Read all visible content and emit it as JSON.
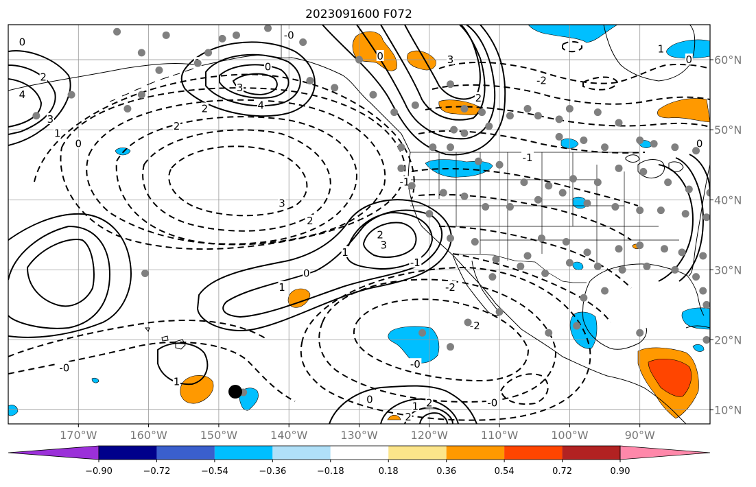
{
  "chart_data": {
    "type": "heatmap",
    "title": "2023091600 F072",
    "xlabel": "",
    "ylabel": "",
    "x_ticks": [
      "170°W",
      "160°W",
      "150°W",
      "140°W",
      "130°W",
      "120°W",
      "110°W",
      "100°W",
      "90°W"
    ],
    "x_tick_values": [
      -170,
      -160,
      -150,
      -140,
      -130,
      -120,
      -110,
      -100,
      -90
    ],
    "y_ticks": [
      "60°N",
      "50°N",
      "40°N",
      "30°N",
      "20°N",
      "10°N"
    ],
    "y_tick_values": [
      60,
      50,
      40,
      30,
      20,
      10
    ],
    "lon_range": [
      -180,
      -80
    ],
    "lat_range": [
      8,
      65
    ],
    "grid": true,
    "colorbar": {
      "tick_labels": [
        "−0.90",
        "−0.72",
        "−0.54",
        "−0.36",
        "−0.18",
        "0.18",
        "0.36",
        "0.54",
        "0.72",
        "0.90"
      ],
      "bounds": [
        -0.9,
        -0.72,
        -0.54,
        -0.36,
        -0.18,
        0.18,
        0.36,
        0.54,
        0.72,
        0.9
      ],
      "colors": [
        "#9b30d9",
        "#00008b",
        "#3a5fcd",
        "#00bfff",
        "#b0e0f8",
        "#ffffff",
        "#fce58a",
        "#ff9900",
        "#ff4500",
        "#b22222",
        "#ff88aa"
      ],
      "extend": "both"
    },
    "contour_labels": [
      {
        "text": "0",
        "lon": -178,
        "lat": 62.5
      },
      {
        "text": "2",
        "lon": -175,
        "lat": 57.5
      },
      {
        "text": "4",
        "lon": -178,
        "lat": 55
      },
      {
        "text": "3",
        "lon": -174,
        "lat": 51.5
      },
      {
        "text": "1",
        "lon": -173,
        "lat": 49.5
      },
      {
        "text": "0",
        "lon": -170,
        "lat": 48
      },
      {
        "text": "1",
        "lon": -153,
        "lat": 59.5
      },
      {
        "text": "3",
        "lon": -147,
        "lat": 56
      },
      {
        "text": "4",
        "lon": -144,
        "lat": 53.5
      },
      {
        "text": "2",
        "lon": -152,
        "lat": 53
      },
      {
        "text": "0",
        "lon": -143,
        "lat": 59
      },
      {
        "text": "-0",
        "lon": -140,
        "lat": 63.5
      },
      {
        "text": "2",
        "lon": -156,
        "lat": 50.5
      },
      {
        "text": "3",
        "lon": -141,
        "lat": 39.5
      },
      {
        "text": "2",
        "lon": -137,
        "lat": 37
      },
      {
        "text": "-1",
        "lon": -123.5,
        "lat": 42.5
      },
      {
        "text": "-1",
        "lon": -106,
        "lat": 46
      },
      {
        "text": "-2",
        "lon": -104,
        "lat": 57
      },
      {
        "text": "0",
        "lon": -127,
        "lat": 60.5
      },
      {
        "text": "3",
        "lon": -117,
        "lat": 60
      },
      {
        "text": "2",
        "lon": -113,
        "lat": 54.5
      },
      {
        "text": "2",
        "lon": -127,
        "lat": 35
      },
      {
        "text": "3",
        "lon": -126.5,
        "lat": 33.5
      },
      {
        "text": "1",
        "lon": -132,
        "lat": 32.5
      },
      {
        "text": "0",
        "lon": -137.5,
        "lat": 29.5
      },
      {
        "text": "1",
        "lon": -141,
        "lat": 27.5
      },
      {
        "text": "-2",
        "lon": -117,
        "lat": 27.5
      },
      {
        "text": "-2",
        "lon": -113.5,
        "lat": 22
      },
      {
        "text": "-0",
        "lon": -172,
        "lat": 16
      },
      {
        "text": "1",
        "lon": -156,
        "lat": 14
      },
      {
        "text": "-0",
        "lon": -122,
        "lat": 16.5
      },
      {
        "text": "0",
        "lon": -128.5,
        "lat": 11.5
      },
      {
        "text": "1",
        "lon": -122,
        "lat": 10.5
      },
      {
        "text": "2",
        "lon": -120,
        "lat": 11
      },
      {
        "text": "2",
        "lon": -123,
        "lat": 9
      },
      {
        "text": "-0",
        "lon": -111,
        "lat": 11
      },
      {
        "text": "0",
        "lon": -81.5,
        "lat": 48
      },
      {
        "text": "1",
        "lon": -87,
        "lat": 61.5
      },
      {
        "text": "0",
        "lon": -83,
        "lat": 60
      },
      {
        "text": "-1",
        "lon": -122,
        "lat": 31
      }
    ],
    "station_dots": [
      [
        -164.5,
        64
      ],
      [
        -161,
        61
      ],
      [
        -157.5,
        63.5
      ],
      [
        -153,
        59.5
      ],
      [
        -151.5,
        61
      ],
      [
        -149.5,
        63
      ],
      [
        -147.5,
        63.5
      ],
      [
        -143,
        64.5
      ],
      [
        -138,
        62.5
      ],
      [
        -130,
        60
      ],
      [
        -171,
        55
      ],
      [
        -163,
        53
      ],
      [
        -161,
        55
      ],
      [
        -137,
        57
      ],
      [
        -133.5,
        56
      ],
      [
        -128,
        55
      ],
      [
        -125,
        52.5
      ],
      [
        -122,
        53.5
      ],
      [
        -117,
        56.5
      ],
      [
        -115,
        53
      ],
      [
        -112.5,
        52.5
      ],
      [
        -116.5,
        50
      ],
      [
        -115,
        49.5
      ],
      [
        -111.5,
        50.5
      ],
      [
        -108.5,
        52
      ],
      [
        -106,
        53
      ],
      [
        -104.5,
        52
      ],
      [
        -101.5,
        51.5
      ],
      [
        -100,
        53
      ],
      [
        -96,
        52.5
      ],
      [
        -93,
        51
      ],
      [
        -101.5,
        49
      ],
      [
        -98,
        48.5
      ],
      [
        -95,
        47.5
      ],
      [
        -90,
        48.5
      ],
      [
        -88,
        48
      ],
      [
        -85,
        47.5
      ],
      [
        -82,
        47
      ],
      [
        -124,
        47.5
      ],
      [
        -119.5,
        47.5
      ],
      [
        -117,
        47.5
      ],
      [
        -113,
        45.5
      ],
      [
        -110,
        45
      ],
      [
        -106.5,
        42.5
      ],
      [
        -103,
        42
      ],
      [
        -99.5,
        43
      ],
      [
        -96,
        42.5
      ],
      [
        -93,
        44.5
      ],
      [
        -89.5,
        44
      ],
      [
        -86,
        42.5
      ],
      [
        -83,
        41.5
      ],
      [
        -80,
        41
      ],
      [
        -124,
        44.5
      ],
      [
        -122.5,
        42
      ],
      [
        -118,
        41
      ],
      [
        -115,
        40.5
      ],
      [
        -112,
        39
      ],
      [
        -108.5,
        39
      ],
      [
        -104.5,
        40
      ],
      [
        -101,
        41
      ],
      [
        -97.5,
        39.5
      ],
      [
        -93.5,
        39
      ],
      [
        -90,
        38.5
      ],
      [
        -87,
        38.5
      ],
      [
        -83.5,
        38
      ],
      [
        -80.5,
        37.5
      ],
      [
        -120,
        38
      ],
      [
        -117,
        34.5
      ],
      [
        -113.5,
        34
      ],
      [
        -110.5,
        31.5
      ],
      [
        -106,
        32
      ],
      [
        -104,
        34.5
      ],
      [
        -100.5,
        34
      ],
      [
        -97.5,
        32.5
      ],
      [
        -93,
        33
      ],
      [
        -90,
        33.5
      ],
      [
        -86.5,
        33
      ],
      [
        -84,
        32.5
      ],
      [
        -81,
        32
      ],
      [
        -111,
        29
      ],
      [
        -107,
        30.5
      ],
      [
        -103.5,
        29.5
      ],
      [
        -100,
        31
      ],
      [
        -96,
        30.5
      ],
      [
        -92.5,
        30
      ],
      [
        -89,
        30.5
      ],
      [
        -85,
        30
      ],
      [
        -82,
        29
      ],
      [
        -98,
        26
      ],
      [
        -95,
        27
      ],
      [
        -81,
        27
      ],
      [
        -80.5,
        25
      ],
      [
        -99,
        22
      ],
      [
        -103,
        21
      ],
      [
        -90,
        21
      ],
      [
        -110,
        24
      ],
      [
        -114.5,
        22.5
      ],
      [
        -117,
        19
      ],
      [
        -121,
        21
      ],
      [
        -146.5,
        12.5
      ],
      [
        -160.5,
        29.5
      ],
      [
        -176,
        52
      ],
      [
        -158.5,
        58.5
      ],
      [
        -80.5,
        20
      ]
    ]
  }
}
